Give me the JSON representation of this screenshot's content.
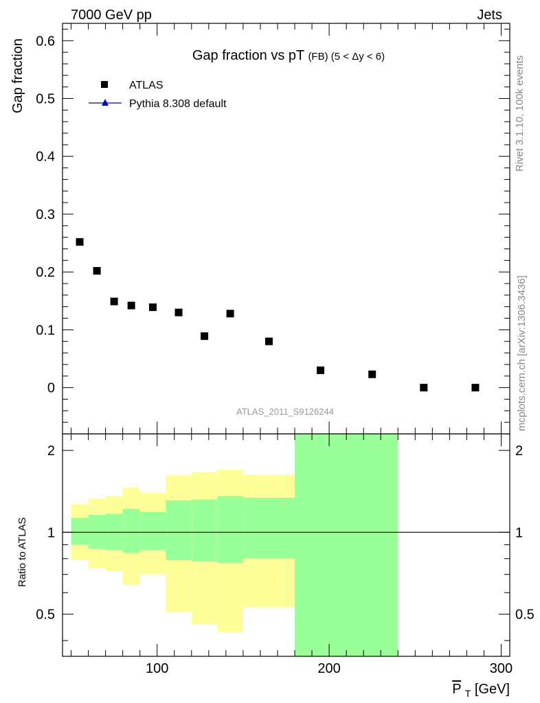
{
  "header": {
    "left_label": "7000 GeV pp",
    "right_label": "Jets",
    "side_label_top": "Rivet 3.1.10,  100k events",
    "side_label_bottom": "mcplots.cern.ch [arXiv:1306.3436]"
  },
  "chart_data": [
    {
      "type": "scatter",
      "title_main": "Gap fraction vs pT",
      "title_sub": "(FB) (5 < Δy < 6)",
      "ylabel": "Gap fraction",
      "analysis_label": "ATLAS_2011_S9126244",
      "ylim": [
        -0.08,
        0.63
      ],
      "xlim": [
        45,
        305
      ],
      "yticks": [
        0,
        0.1,
        0.2,
        0.3,
        0.4,
        0.5,
        0.6
      ],
      "ytick_labels": [
        "0",
        "0.1",
        "0.2",
        "0.3",
        "0.4",
        "0.5",
        "0.6"
      ],
      "legend": {
        "placement": "top-left",
        "entries": [
          {
            "label": "ATLAS",
            "marker": "square",
            "color": "#000000"
          },
          {
            "label": "Pythia 8.308 default",
            "marker": "triangle",
            "color": "#0000cc"
          }
        ]
      },
      "series": [
        {
          "name": "ATLAS",
          "x": [
            55,
            65,
            75,
            85,
            97.5,
            112.5,
            127.5,
            142.5,
            165,
            195,
            225,
            255,
            285
          ],
          "values": [
            0.252,
            0.202,
            0.149,
            0.142,
            0.139,
            0.13,
            0.089,
            0.128,
            0.08,
            0.03,
            0.023,
            0.0,
            0.0
          ]
        }
      ]
    },
    {
      "type": "area",
      "ylabel": "Ratio to ATLAS",
      "xlabel": "P_T [GeV]",
      "xlabel_main": "P",
      "xlabel_sub": "T",
      "xlabel_unit": " [GeV]",
      "xlim": [
        45,
        305
      ],
      "ylim": [
        0.35,
        2.3
      ],
      "xticks": [
        100,
        200,
        300
      ],
      "xtick_labels": [
        "100",
        "200",
        "300"
      ],
      "yticks": [
        0.5,
        1,
        2
      ],
      "ytick_labels": [
        "0.5",
        "1",
        "2"
      ],
      "reference_line": 1,
      "colors": {
        "inner_band": "#99ff99",
        "outer_band": "#ffff99"
      },
      "bands": [
        {
          "x_low": 50,
          "x_high": 60,
          "inner": [
            0.9,
            1.13
          ],
          "outer": [
            0.79,
            1.27
          ]
        },
        {
          "x_low": 60,
          "x_high": 70,
          "inner": [
            0.87,
            1.16
          ],
          "outer": [
            0.74,
            1.33
          ]
        },
        {
          "x_low": 70,
          "x_high": 80,
          "inner": [
            0.86,
            1.17
          ],
          "outer": [
            0.72,
            1.36
          ]
        },
        {
          "x_low": 80,
          "x_high": 90,
          "inner": [
            0.84,
            1.22
          ],
          "outer": [
            0.64,
            1.46
          ]
        },
        {
          "x_low": 90,
          "x_high": 105,
          "inner": [
            0.86,
            1.19
          ],
          "outer": [
            0.7,
            1.4
          ]
        },
        {
          "x_low": 105,
          "x_high": 120,
          "inner": [
            0.79,
            1.31
          ],
          "outer": [
            0.51,
            1.62
          ]
        },
        {
          "x_low": 120,
          "x_high": 135,
          "inner": [
            0.78,
            1.32
          ],
          "outer": [
            0.46,
            1.66
          ]
        },
        {
          "x_low": 135,
          "x_high": 150,
          "inner": [
            0.77,
            1.36
          ],
          "outer": [
            0.43,
            1.7
          ]
        },
        {
          "x_low": 150,
          "x_high": 180,
          "inner": [
            0.8,
            1.34
          ],
          "outer": [
            0.53,
            1.63
          ]
        },
        {
          "x_low": 180,
          "x_high": 240,
          "inner": [
            0.35,
            2.3
          ],
          "outer": [
            0.35,
            2.3
          ]
        }
      ]
    }
  ]
}
